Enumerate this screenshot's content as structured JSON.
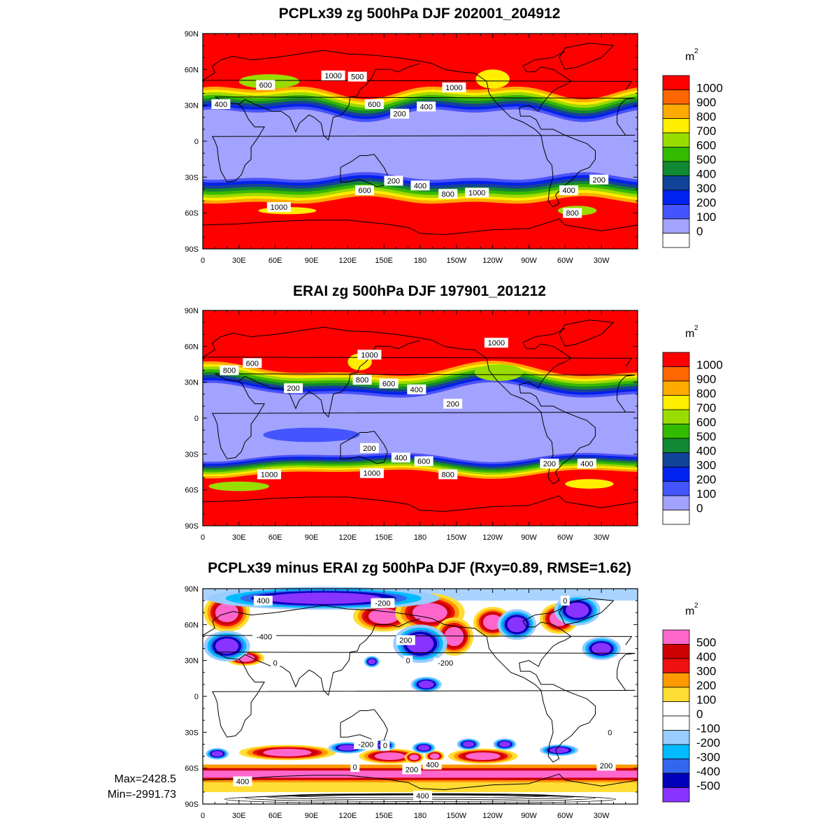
{
  "panels": [
    {
      "title": "PCPLx39 zg 500hPa DJF 202001_204912",
      "kind": "abs",
      "unit": "m",
      "unit_sup": "2",
      "contour_labels": [
        {
          "text": "400",
          "lon": 15,
          "lat": 31
        },
        {
          "text": "600",
          "lon": 52,
          "lat": 47
        },
        {
          "text": "1000",
          "lon": 108,
          "lat": 55
        },
        {
          "text": "500",
          "lon": 128,
          "lat": 54
        },
        {
          "text": "600",
          "lon": 142,
          "lat": 31
        },
        {
          "text": "200",
          "lon": 163,
          "lat": 23
        },
        {
          "text": "400",
          "lon": 185,
          "lat": 29
        },
        {
          "text": "1000",
          "lon": 208,
          "lat": 45
        },
        {
          "text": "200",
          "lon": 158,
          "lat": -33
        },
        {
          "text": "400",
          "lon": 180,
          "lat": -37
        },
        {
          "text": "600",
          "lon": 134,
          "lat": -41
        },
        {
          "text": "800",
          "lon": 203,
          "lat": -44
        },
        {
          "text": "1000",
          "lon": 227,
          "lat": -43
        },
        {
          "text": "400",
          "lon": 303,
          "lat": -41
        },
        {
          "text": "200",
          "lon": 328,
          "lat": -32
        },
        {
          "text": "1000",
          "lon": 63,
          "lat": -55
        },
        {
          "text": "800",
          "lon": 306,
          "lat": -60
        }
      ]
    },
    {
      "title": "ERAI zg 500hPa DJF 197901_201212",
      "kind": "abs",
      "unit": "m",
      "unit_sup": "2",
      "contour_labels": [
        {
          "text": "800",
          "lon": 22,
          "lat": 40
        },
        {
          "text": "600",
          "lon": 41,
          "lat": 46
        },
        {
          "text": "1000",
          "lon": 138,
          "lat": 53
        },
        {
          "text": "1000",
          "lon": 243,
          "lat": 63
        },
        {
          "text": "800",
          "lon": 132,
          "lat": 32
        },
        {
          "text": "600",
          "lon": 154,
          "lat": 29
        },
        {
          "text": "400",
          "lon": 177,
          "lat": 24
        },
        {
          "text": "200",
          "lon": 75,
          "lat": 25
        },
        {
          "text": "200",
          "lon": 207,
          "lat": 12
        },
        {
          "text": "200",
          "lon": 138,
          "lat": -25
        },
        {
          "text": "400",
          "lon": 164,
          "lat": -33
        },
        {
          "text": "600",
          "lon": 183,
          "lat": -36
        },
        {
          "text": "800",
          "lon": 203,
          "lat": -47
        },
        {
          "text": "1000",
          "lon": 55,
          "lat": -47
        },
        {
          "text": "1000",
          "lon": 140,
          "lat": -46
        },
        {
          "text": "200",
          "lon": 287,
          "lat": -38
        },
        {
          "text": "400",
          "lon": 318,
          "lat": -38
        }
      ]
    },
    {
      "title": "PCPLx39 minus ERAI zg 500hPa DJF (Rxy=0.89, RMSE=1.62)",
      "kind": "diff",
      "unit": "m",
      "unit_sup": "2",
      "contour_labels": [
        {
          "text": "-400",
          "lon": 51,
          "lat": 50
        },
        {
          "text": "400",
          "lon": 50,
          "lat": 80
        },
        {
          "text": "-200",
          "lon": 149,
          "lat": 78
        },
        {
          "text": "0",
          "lon": 300,
          "lat": 80
        },
        {
          "text": "200",
          "lon": 168,
          "lat": 47
        },
        {
          "text": "0",
          "lon": 170,
          "lat": 30
        },
        {
          "text": "-200",
          "lon": 201,
          "lat": 28
        },
        {
          "text": "0",
          "lon": 60,
          "lat": 28
        },
        {
          "text": "-200",
          "lon": 135,
          "lat": -40
        },
        {
          "text": "0",
          "lon": 151,
          "lat": -41
        },
        {
          "text": "0",
          "lon": 126,
          "lat": -59
        },
        {
          "text": "200",
          "lon": 173,
          "lat": -61
        },
        {
          "text": "400",
          "lon": 190,
          "lat": -57
        },
        {
          "text": "200",
          "lon": 334,
          "lat": -58
        },
        {
          "text": "400",
          "lon": 33,
          "lat": -71
        },
        {
          "text": "400",
          "lon": 182,
          "lat": -83
        },
        {
          "text": "0",
          "lon": 337,
          "lat": -30
        }
      ],
      "stats": {
        "max": "Max=2428.5",
        "min": "Min=-2991.73"
      }
    }
  ],
  "x_ticks": [
    "0",
    "30E",
    "60E",
    "90E",
    "120E",
    "150E",
    "180",
    "150W",
    "120W",
    "90W",
    "60W",
    "30W"
  ],
  "y_ticks": [
    "90N",
    "60N",
    "30N",
    "0",
    "30S",
    "60S",
    "90S"
  ],
  "colorbars": {
    "abs": {
      "labels": [
        "1000",
        "900",
        "800",
        "700",
        "600",
        "500",
        "400",
        "300",
        "200",
        "100",
        "0"
      ],
      "colors": [
        "#ff0000",
        "#ff6600",
        "#ffaa00",
        "#ffee00",
        "#99dd00",
        "#33bb00",
        "#118833",
        "#114499",
        "#0022ee",
        "#4455ff",
        "#a2a2ff",
        "#ffffff"
      ]
    },
    "diff": {
      "labels": [
        "500",
        "400",
        "300",
        "200",
        "100",
        "0",
        "-100",
        "-200",
        "-300",
        "-400",
        "-500"
      ],
      "colors": [
        "#ff66cc",
        "#cc0000",
        "#ee1111",
        "#ff9900",
        "#ffdd33",
        "#ffffff",
        "#ffffff",
        "#99ccff",
        "#00bbff",
        "#3366ee",
        "#0000bb",
        "#8833ff"
      ]
    }
  }
}
